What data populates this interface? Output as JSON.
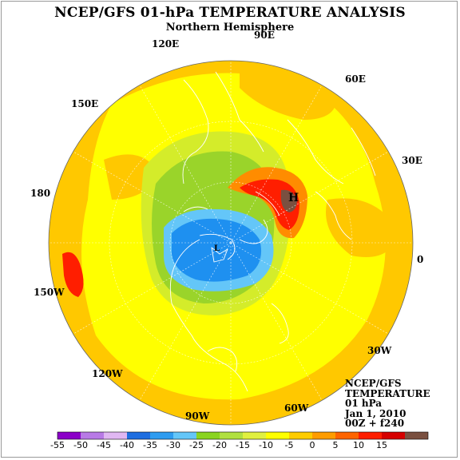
{
  "title": "NCEP/GFS 01-hPa TEMPERATURE ANALYSIS",
  "subtitle": "Northern Hemisphere",
  "longitude_labels": [
    {
      "id": "90E",
      "text": "90E"
    },
    {
      "id": "120E",
      "text": "120E"
    },
    {
      "id": "60E",
      "text": "60E"
    },
    {
      "id": "150E",
      "text": "150E"
    },
    {
      "id": "30E",
      "text": "30E"
    },
    {
      "id": "180",
      "text": "180"
    },
    {
      "id": "0",
      "text": "0"
    },
    {
      "id": "150W",
      "text": "150W"
    },
    {
      "id": "30W",
      "text": "30W"
    },
    {
      "id": "120W",
      "text": "120W"
    },
    {
      "id": "90W",
      "text": "90W"
    },
    {
      "id": "60W",
      "text": "60W"
    }
  ],
  "info_box": {
    "line1": "NCEP/GFS",
    "line2": "TEMPERATURE",
    "line3": "01 hPa",
    "line4": "Jan 1, 2010",
    "line5": "00Z + f240"
  },
  "centers": [
    {
      "id": "high",
      "text": "H"
    },
    {
      "id": "low",
      "text": "L"
    }
  ],
  "colorbar": {
    "colors": [
      "#8b00c8",
      "#b87ae6",
      "#e0b7f2",
      "#1e6ee0",
      "#2e9cf0",
      "#64c6f8",
      "#8ad420",
      "#b0e040",
      "#e0f040",
      "#ffff00",
      "#ffcc00",
      "#ff9c00",
      "#ff6400",
      "#ff1e00",
      "#d60000",
      "#7a5040",
      "#888888"
    ],
    "labels": [
      "-55",
      "-50",
      "-45",
      "-40",
      "-35",
      "-30",
      "-25",
      "-20",
      "-15",
      "-10",
      "-5",
      "0",
      "5",
      "10",
      "15"
    ]
  },
  "field_colors": {
    "outer_warm": "#ff8c00",
    "orange": "#ffc800",
    "yellow": "#ffff00",
    "yellow_green": "#d4ec2a",
    "green": "#9ad42a",
    "blue_light": "#64c6f8",
    "blue": "#1e90f0",
    "red": "#ff1e00",
    "dark_red": "#cc0000",
    "brown": "#7a5040"
  }
}
